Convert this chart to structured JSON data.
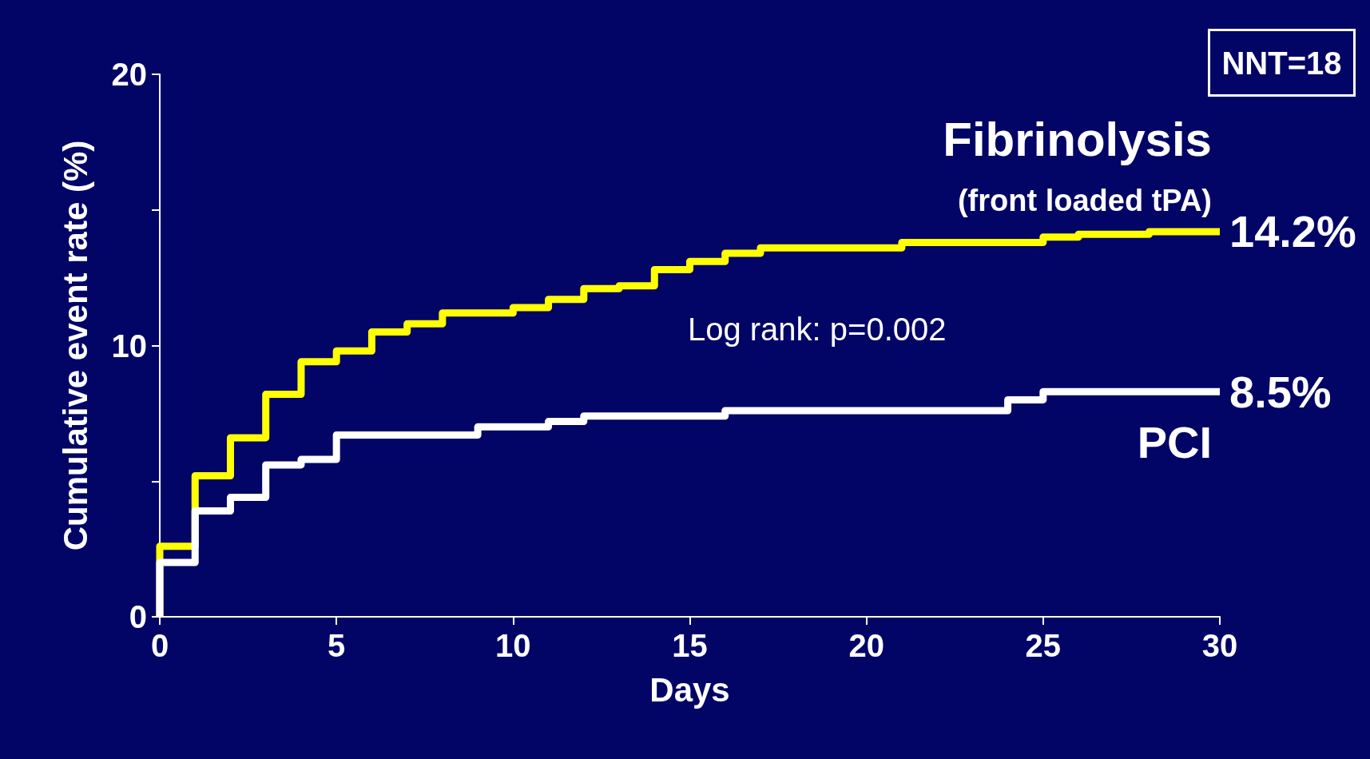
{
  "chart_data": {
    "type": "step",
    "xlabel": "Days",
    "ylabel": "Cumulative event rate (%)",
    "xlim": [
      0,
      30
    ],
    "xticks": [
      0,
      5,
      10,
      15,
      20,
      25,
      30
    ],
    "ylim": [
      0,
      20
    ],
    "yticks": [
      0,
      {
        "value": 5,
        "label": null
      },
      10,
      {
        "value": 15,
        "label": null
      },
      20
    ],
    "grid": false,
    "legend": false,
    "marker": "none",
    "line_style": "solid",
    "series": [
      {
        "name": "Fibrinolysis",
        "color": "#ffff00",
        "x": [
          0,
          0,
          1,
          2,
          3,
          4,
          5,
          6,
          7,
          8,
          10,
          11,
          12,
          13,
          14,
          15,
          16,
          17,
          21,
          25,
          26,
          28,
          30
        ],
        "values": [
          0,
          2.6,
          5.2,
          6.6,
          8.2,
          9.4,
          9.8,
          10.5,
          10.8,
          11.2,
          11.4,
          11.7,
          12.1,
          12.2,
          12.8,
          13.1,
          13.4,
          13.6,
          13.8,
          14.0,
          14.1,
          14.2,
          14.2
        ]
      },
      {
        "name": "PCI",
        "color": "#ffffff",
        "x": [
          0,
          0,
          1,
          2,
          3,
          4,
          5,
          9,
          11,
          12,
          16,
          24,
          25,
          30
        ],
        "values": [
          0,
          2.0,
          3.9,
          4.4,
          5.6,
          5.8,
          6.7,
          7.0,
          7.2,
          7.4,
          7.6,
          8.0,
          8.3,
          8.3
        ]
      }
    ],
    "annotations": [
      {
        "text": "14.2%",
        "x": 30,
        "y": 14.2
      },
      {
        "text": "8.5%",
        "x": 30,
        "y": 8.3
      },
      "(front loaded tPA)",
      "Log rank: p=0.002",
      "NNT=18"
    ]
  }
}
